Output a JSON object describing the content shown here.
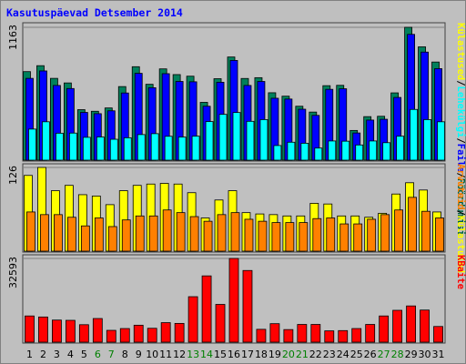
{
  "chart_data": [
    {
      "type": "bar",
      "title": "Kasutuspäevad Detsember 2014",
      "panel": "top",
      "scale_label": "1163",
      "legend": [
        {
          "text": "Külastused",
          "color": "#ffff00"
        },
        {
          "text": "/",
          "color": "#000000"
        },
        {
          "text": "Lehekülgi",
          "color": "#00ffff"
        },
        {
          "text": "/",
          "color": "#000000"
        },
        {
          "text": "Faile",
          "color": "#0000ff"
        },
        {
          "text": "/",
          "color": "#000000"
        },
        {
          "text": "Pöördumisi",
          "color": "#006040"
        }
      ],
      "ylim": [
        0,
        1163
      ],
      "categories": [
        "1",
        "2",
        "3",
        "4",
        "5",
        "6",
        "7",
        "8",
        "9",
        "10",
        "11",
        "12",
        "13",
        "14",
        "15",
        "16",
        "17",
        "18",
        "19",
        "20",
        "21",
        "22",
        "23",
        "24",
        "25",
        "26",
        "27",
        "28",
        "29",
        "30",
        "31"
      ],
      "series": [
        {
          "name": "Pöördumisi",
          "color": "#00805b",
          "values": [
            775,
            827,
            716,
            676,
            442,
            428,
            457,
            644,
            818,
            664,
            799,
            749,
            735,
            506,
            713,
            903,
            715,
            722,
            590,
            560,
            472,
            421,
            652,
            655,
            260,
            381,
            384,
            589,
            1163,
            992,
            859
          ]
        },
        {
          "name": "Faile",
          "color": "#0000ff",
          "values": [
            716,
            781,
            654,
            627,
            418,
            407,
            432,
            588,
            760,
            634,
            757,
            689,
            686,
            472,
            682,
            873,
            654,
            689,
            542,
            535,
            446,
            392,
            620,
            625,
            238,
            351,
            358,
            549,
            1101,
            946,
            801
          ]
        },
        {
          "name": "Lehekülgi",
          "color": "#00ffff",
          "values": [
            272,
            336,
            236,
            237,
            200,
            203,
            183,
            196,
            224,
            232,
            209,
            202,
            210,
            338,
            401,
            417,
            340,
            355,
            128,
            157,
            148,
            106,
            168,
            166,
            133,
            168,
            153,
            210,
            444,
            355,
            336
          ]
        }
      ]
    },
    {
      "type": "bar",
      "panel": "middle",
      "scale_label": "126",
      "legend": [
        {
          "text": "Arvuteid",
          "color": "#ff8000"
        },
        {
          "text": "/",
          "color": "#000000"
        },
        {
          "text": "Külastused",
          "color": "#ffff00"
        }
      ],
      "ylim": [
        0,
        126
      ],
      "categories": [
        "1",
        "2",
        "3",
        "4",
        "5",
        "6",
        "7",
        "8",
        "9",
        "10",
        "11",
        "12",
        "13",
        "14",
        "15",
        "16",
        "17",
        "18",
        "19",
        "20",
        "21",
        "22",
        "23",
        "24",
        "25",
        "26",
        "27",
        "28",
        "29",
        "30",
        "31"
      ],
      "series": [
        {
          "name": "Külastused",
          "color": "#ffff00",
          "values": [
            114,
            126,
            91,
            99,
            85,
            83,
            70,
            91,
            99,
            101,
            102,
            101,
            88,
            50,
            77,
            91,
            58,
            56,
            55,
            53,
            53,
            72,
            71,
            53,
            53,
            51,
            57,
            86,
            103,
            92,
            59
          ]
        },
        {
          "name": "Arvuteid",
          "color": "#ff8000",
          "values": [
            59,
            55,
            55,
            51,
            38,
            50,
            37,
            47,
            53,
            53,
            62,
            58,
            52,
            45,
            55,
            58,
            48,
            45,
            43,
            43,
            43,
            49,
            50,
            41,
            41,
            48,
            55,
            62,
            81,
            60,
            50
          ]
        }
      ]
    },
    {
      "type": "bar",
      "panel": "bottom",
      "scale_label": "32593",
      "legend": [
        {
          "text": "KBaite",
          "color": "#ff0000"
        }
      ],
      "ylim": [
        0,
        32593
      ],
      "categories": [
        "1",
        "2",
        "3",
        "4",
        "5",
        "6",
        "7",
        "8",
        "9",
        "10",
        "11",
        "12",
        "13",
        "14",
        "15",
        "16",
        "17",
        "18",
        "19",
        "20",
        "21",
        "22",
        "23",
        "24",
        "25",
        "26",
        "27",
        "28",
        "29",
        "30",
        "31"
      ],
      "x_label_colors": [
        "#000000",
        "#000000",
        "#000000",
        "#000000",
        "#000000",
        "#008000",
        "#008000",
        "#000000",
        "#000000",
        "#000000",
        "#000000",
        "#000000",
        "#008000",
        "#008000",
        "#000000",
        "#000000",
        "#000000",
        "#000000",
        "#000000",
        "#008000",
        "#008000",
        "#000000",
        "#000000",
        "#000000",
        "#000000",
        "#000000",
        "#008000",
        "#008000",
        "#000000",
        "#000000",
        "#000000"
      ],
      "series": [
        {
          "name": "KBaite",
          "color": "#ff0000",
          "values": [
            10200,
            9800,
            8600,
            8500,
            6800,
            9200,
            4600,
            5300,
            6600,
            5400,
            7600,
            7300,
            17700,
            25800,
            14700,
            32593,
            27900,
            5000,
            7200,
            4900,
            6900,
            6900,
            4400,
            4500,
            5300,
            6900,
            10200,
            12400,
            14100,
            12500,
            6100
          ]
        }
      ]
    }
  ]
}
